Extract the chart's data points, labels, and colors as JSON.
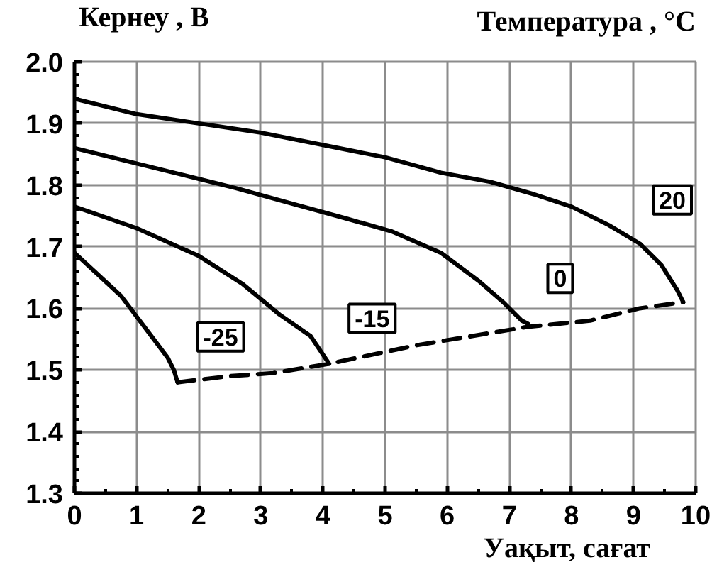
{
  "chart_data": {
    "type": "line",
    "xlabel": "Уақыт, сағат",
    "ylabel": "Кернеу , В",
    "legend_title": "Температура , °C",
    "xlim": [
      0,
      10
    ],
    "ylim": [
      1.3,
      2.0
    ],
    "xticks": [
      0,
      1,
      2,
      3,
      4,
      5,
      6,
      7,
      8,
      9,
      10
    ],
    "yticks": [
      1.3,
      1.4,
      1.5,
      1.6,
      1.7,
      1.8,
      1.9,
      {
        "value": 2.0,
        "label": "2.0"
      }
    ],
    "grid": true,
    "line_style": "solid",
    "series": [
      {
        "name": "20",
        "color": "#000000",
        "x": [
          0,
          1,
          2,
          3,
          4,
          5,
          5.9,
          6.7,
          7.4,
          8,
          8.6,
          9.1,
          9.45,
          9.7,
          9.8
        ],
        "values": [
          1.94,
          1.915,
          1.9,
          1.885,
          1.865,
          1.845,
          1.82,
          1.805,
          1.785,
          1.765,
          1.735,
          1.705,
          1.67,
          1.63,
          1.61
        ]
      },
      {
        "name": "0",
        "color": "#000000",
        "x": [
          0,
          1,
          1.8,
          2.6,
          3.5,
          4.4,
          5.1,
          5.9,
          6.5,
          6.9,
          7.2,
          7.3
        ],
        "values": [
          1.86,
          1.835,
          1.815,
          1.795,
          1.77,
          1.745,
          1.725,
          1.69,
          1.645,
          1.61,
          1.58,
          1.575
        ]
      },
      {
        "name": "-15",
        "color": "#000000",
        "x": [
          0,
          1,
          2,
          2.7,
          3.3,
          3.8,
          4.1
        ],
        "values": [
          1.765,
          1.73,
          1.685,
          1.64,
          1.59,
          1.555,
          1.51
        ]
      },
      {
        "name": "-25",
        "color": "#000000",
        "x": [
          0,
          0.75,
          1.2,
          1.5,
          1.6,
          1.66
        ],
        "values": [
          1.69,
          1.62,
          1.56,
          1.52,
          1.5,
          1.48
        ]
      },
      {
        "color": "#000000",
        "line_style": "dashed",
        "x": [
          1.66,
          2.5,
          3.2,
          4.1,
          5.5,
          6.1,
          7.3,
          8.3,
          9.1,
          9.8
        ],
        "values": [
          1.48,
          1.49,
          1.495,
          1.51,
          1.54,
          1.55,
          1.57,
          1.58,
          1.6,
          1.61
        ]
      }
    ]
  }
}
